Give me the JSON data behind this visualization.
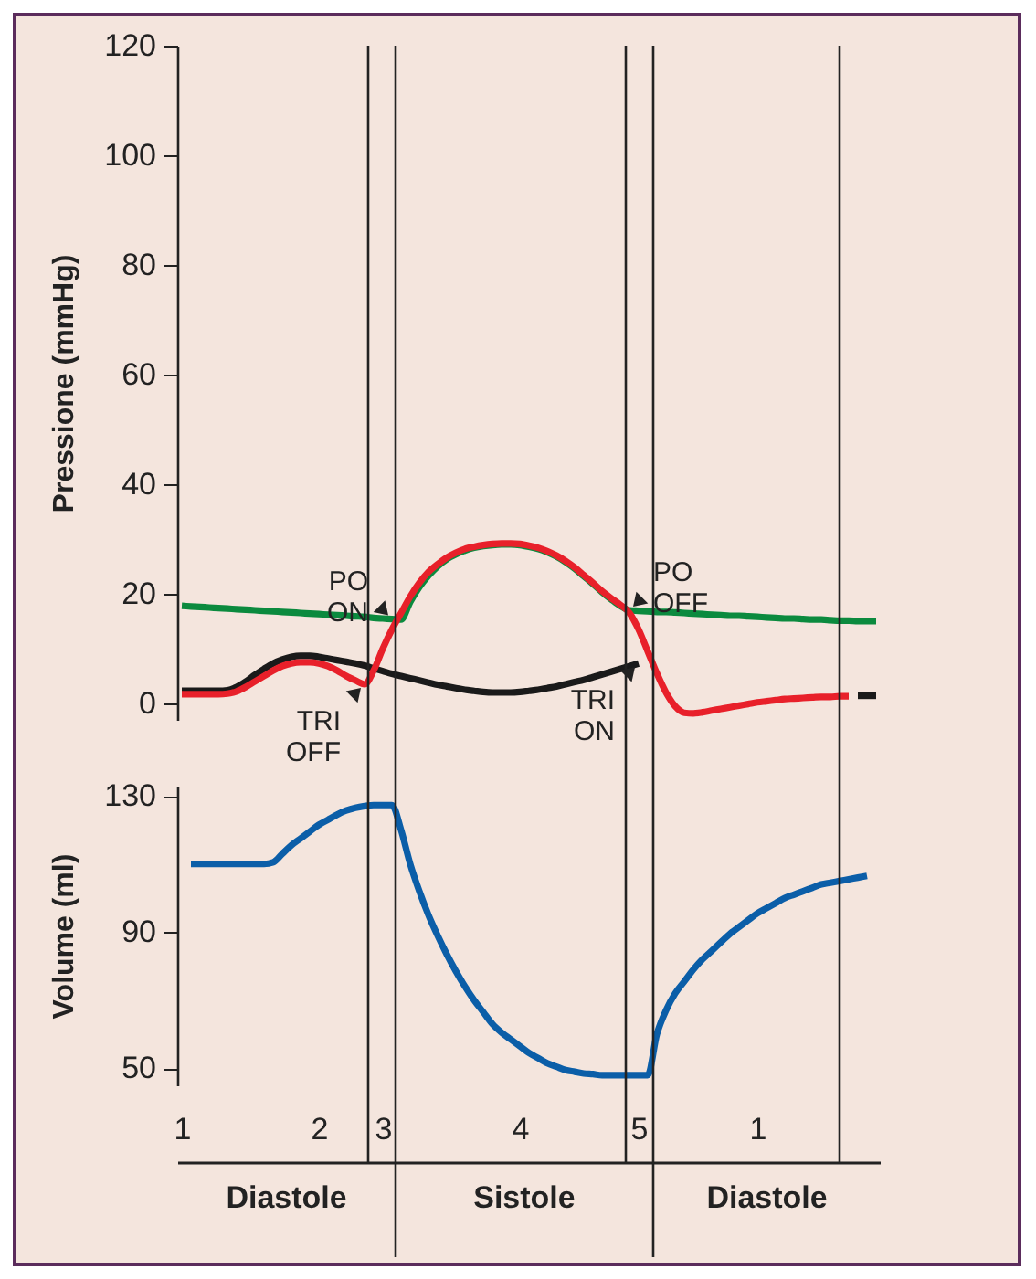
{
  "chart_data": [
    {
      "type": "line",
      "ylabel": "Pressione (mmHg)",
      "tick_labels": "y",
      "categories": [
        null,
        null,
        null,
        null,
        null,
        null,
        null,
        null,
        null,
        null,
        null,
        null,
        null,
        null,
        null,
        null,
        null,
        null,
        null,
        null,
        null,
        null,
        null,
        null,
        null,
        null,
        null,
        null,
        null,
        null,
        null,
        null,
        null,
        null,
        null,
        null,
        null,
        null,
        null,
        null,
        null,
        null,
        null,
        null,
        null,
        null,
        null,
        null,
        null,
        null,
        null,
        null,
        null,
        null,
        null,
        null,
        null,
        null,
        null,
        null,
        null,
        null,
        null,
        null,
        null,
        null,
        null,
        null,
        null,
        null,
        null,
        null,
        null,
        null,
        null,
        null,
        null
      ],
      "ylim": [
        -3,
        120
      ],
      "yticks": [
        0,
        20,
        40,
        60,
        80,
        100,
        120
      ],
      "series": [
        {
          "color": "#0b8a3e",
          "values": [
            17.8,
            17.7,
            17.6,
            17.5,
            17.4,
            17.3,
            17.2,
            17.1,
            17.0,
            16.9,
            16.8,
            16.7,
            16.6,
            16.5,
            16.4,
            16.3,
            16.2,
            16.1,
            16.0,
            15.9,
            15.8,
            15.6,
            15.5,
            15.4,
            15.3,
            18.5,
            21.2,
            23.3,
            25,
            26.3,
            27.2,
            27.9,
            28.4,
            28.7,
            28.9,
            29,
            29,
            28.9,
            28.6,
            28.2,
            27.6,
            26.8,
            25.8,
            24.6,
            23.2,
            21.8,
            20.3,
            19,
            17.8,
            17.0,
            16.9,
            16.8,
            16.7,
            16.7,
            16.6,
            16.5,
            16.4,
            16.3,
            16.2,
            16.1,
            16.0,
            16.0,
            15.9,
            15.8,
            15.7,
            15.6,
            15.5,
            15.5,
            15.4,
            15.3,
            15.3,
            15.2,
            15.1,
            15.1,
            15.0,
            15.0,
            15.0
          ],
          "value_labels": [
            null,
            null,
            null,
            null,
            null,
            null,
            null,
            null,
            null,
            null,
            null,
            null,
            null,
            null,
            null,
            null,
            null,
            null,
            null,
            null,
            null,
            null,
            null,
            "PO ON",
            null,
            null,
            null,
            null,
            null,
            null,
            null,
            null,
            null,
            null,
            null,
            null,
            null,
            null,
            null,
            null,
            null,
            null,
            null,
            null,
            null,
            null,
            null,
            null,
            null,
            "PO OFF",
            null,
            null,
            null,
            null,
            null,
            null,
            null,
            null,
            null,
            null,
            null,
            null,
            null,
            null,
            null,
            null,
            null,
            null,
            null,
            null,
            null,
            null,
            null,
            null,
            null,
            null,
            null
          ]
        },
        {
          "color": "#1a1a1a",
          "values": [
            2.3,
            2.3,
            2.3,
            2.3,
            2.3,
            2.4,
            3,
            4,
            5.2,
            6.3,
            7.3,
            8,
            8.5,
            8.7,
            8.7,
            8.5,
            8.2,
            7.9,
            7.6,
            7.3,
            6.9,
            6.4,
            5.9,
            5.4,
            5,
            4.6,
            4.2,
            3.8,
            3.4,
            3.1,
            2.8,
            2.5,
            2.3,
            2.1,
            2,
            2,
            2,
            2.1,
            2.3,
            2.5,
            2.8,
            3.1,
            3.5,
            3.9,
            4.3,
            4.8,
            5.3,
            5.8,
            6.3,
            6.8,
            7.3,
            null,
            null,
            null,
            null,
            null,
            null,
            null,
            null,
            null,
            null,
            null,
            null,
            null,
            null,
            null,
            null,
            null,
            null,
            null,
            null,
            null,
            null,
            null,
            null,
            null,
            null
          ],
          "value_labels": [
            null,
            null,
            null,
            null,
            null,
            null,
            null,
            null,
            null,
            null,
            null,
            null,
            null,
            null,
            null,
            null,
            null,
            null,
            null,
            null,
            null,
            null,
            null,
            null,
            null,
            null,
            null,
            null,
            null,
            null,
            null,
            null,
            null,
            null,
            null,
            null,
            null,
            null,
            null,
            null,
            null,
            null,
            null,
            null,
            null,
            null,
            null,
            null,
            null,
            null,
            "TRI ON",
            null,
            null,
            null,
            null,
            null,
            null,
            null,
            null,
            null,
            null,
            null,
            null,
            null,
            null,
            null,
            null,
            null,
            null,
            null,
            null,
            null,
            null,
            null,
            null,
            null,
            null
          ]
        },
        {
          "color": "#1a1a1a",
          "values": [
            null,
            null,
            null,
            null,
            null,
            null,
            null,
            null,
            null,
            null,
            null,
            null,
            null,
            null,
            null,
            null,
            null,
            null,
            null,
            null,
            null,
            null,
            null,
            null,
            null,
            null,
            null,
            null,
            null,
            null,
            null,
            null,
            null,
            null,
            null,
            null,
            null,
            null,
            null,
            null,
            null,
            null,
            null,
            null,
            null,
            null,
            null,
            null,
            null,
            null,
            null,
            null,
            null,
            null,
            null,
            null,
            null,
            null,
            null,
            null,
            null,
            null,
            null,
            null,
            null,
            null,
            null,
            null,
            null,
            null,
            null,
            null,
            null,
            null,
            1.4,
            1.4,
            1.4
          ]
        },
        {
          "color": "#e8202a",
          "values": [
            1.7,
            1.7,
            1.7,
            1.7,
            1.7,
            1.8,
            2.2,
            3,
            4,
            5,
            6,
            6.8,
            7.3,
            7.5,
            7.5,
            7.3,
            6.8,
            6,
            5,
            4.2,
            3.5,
            6,
            10,
            13.5,
            16.5,
            19.5,
            22,
            24,
            25.4,
            26.6,
            27.5,
            28.2,
            28.6,
            28.9,
            29.1,
            29.2,
            29.2,
            29.1,
            28.8,
            28.4,
            27.8,
            27,
            26,
            24.8,
            23.4,
            22,
            20.5,
            19.2,
            18,
            16.5,
            13.5,
            9.5,
            5.5,
            2,
            -0.5,
            -1.7,
            -1.8,
            -1.6,
            -1.3,
            -1,
            -0.7,
            -0.4,
            -0.1,
            0.2,
            0.4,
            0.6,
            0.8,
            0.9,
            1,
            1.1,
            1.2,
            1.2,
            1.3,
            1.3,
            null,
            null,
            null
          ],
          "value_labels": [
            null,
            null,
            null,
            null,
            null,
            null,
            null,
            null,
            null,
            null,
            null,
            null,
            null,
            null,
            null,
            null,
            null,
            null,
            null,
            null,
            "TRI OFF",
            null,
            null,
            null,
            null,
            null,
            null,
            null,
            null,
            null,
            null,
            null,
            null,
            null,
            null,
            null,
            null,
            null,
            null,
            null,
            null,
            null,
            null,
            null,
            null,
            null,
            null,
            null,
            null,
            null,
            null,
            null,
            null,
            null,
            null,
            null,
            null,
            null,
            null,
            null,
            null,
            null,
            null,
            null,
            null,
            null,
            null,
            null,
            null,
            null,
            null,
            null,
            null,
            null,
            null,
            null,
            null
          ]
        }
      ],
      "grid": false
    },
    {
      "type": "line",
      "ylabel": "Volume (ml)",
      "categories": [
        "1",
        null,
        null,
        null,
        null,
        null,
        null,
        null,
        null,
        null,
        null,
        null,
        null,
        null,
        null,
        "2",
        null,
        null,
        null,
        null,
        null,
        null,
        "3",
        null,
        null,
        null,
        null,
        null,
        null,
        null,
        null,
        null,
        null,
        null,
        null,
        null,
        null,
        "4",
        null,
        null,
        null,
        null,
        null,
        null,
        null,
        null,
        null,
        null,
        null,
        null,
        "5",
        null,
        null,
        null,
        null,
        null,
        null,
        null,
        null,
        null,
        null,
        null,
        null,
        "1",
        null,
        null,
        null,
        null,
        null,
        null,
        null,
        null,
        null,
        null,
        null,
        null,
        null
      ],
      "ylim": [
        45,
        133
      ],
      "yticks": [
        50,
        90,
        130
      ],
      "series": [
        {
          "color": "#0b5ea8",
          "values": [
            null,
            110,
            110,
            110,
            110,
            110,
            110,
            110,
            110,
            110,
            110.5,
            113,
            115.5,
            117.5,
            119.5,
            121.5,
            123,
            124.5,
            125.7,
            126.5,
            127,
            127.3,
            127.3,
            127.3,
            120,
            110,
            102,
            95,
            89,
            83.5,
            78.5,
            74,
            70,
            66.5,
            63,
            60.5,
            58.5,
            56.5,
            54.5,
            53,
            51.5,
            50.5,
            49.5,
            49,
            48.5,
            48.3,
            48,
            48,
            48,
            48,
            48,
            48,
            60,
            67,
            72,
            75.5,
            79,
            82,
            84.5,
            87,
            89.5,
            91.5,
            93.5,
            95.5,
            97,
            98.5,
            100,
            101,
            102,
            103,
            104,
            104.5,
            105,
            105.5,
            106,
            106.5,
            null
          ]
        }
      ],
      "annotations": [
        "Diastole",
        "Sistole",
        "Diastole"
      ]
    }
  ]
}
